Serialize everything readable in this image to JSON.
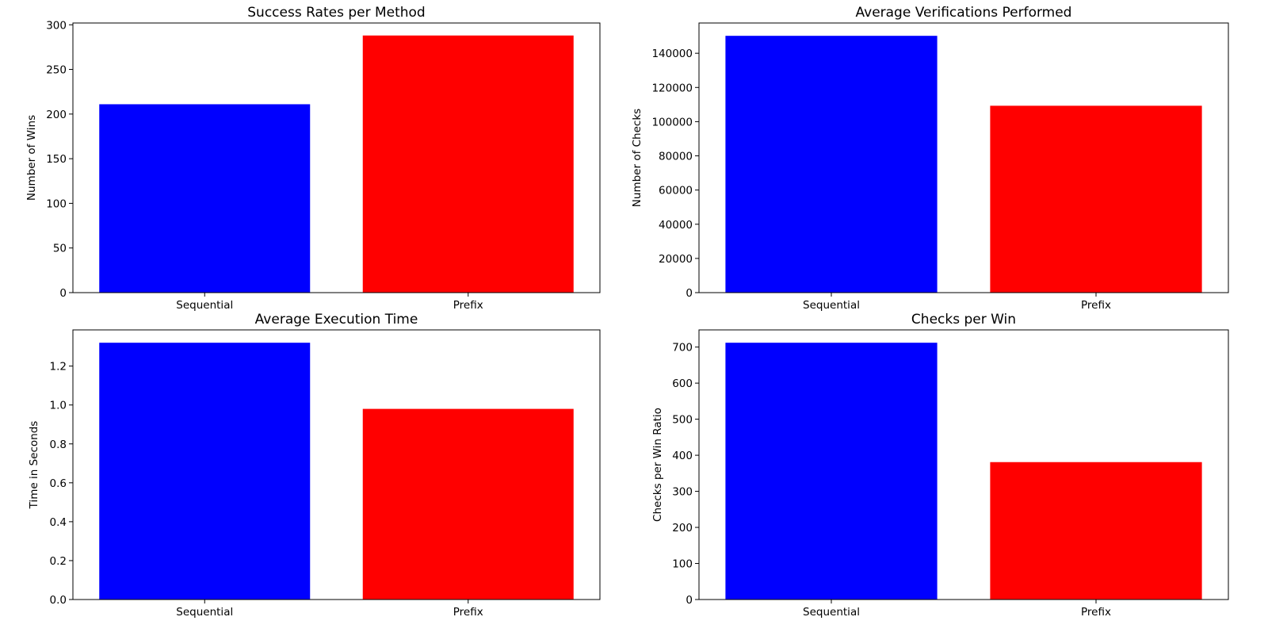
{
  "chart_data": [
    {
      "type": "bar",
      "title": "Success Rates per Method",
      "xlabel": "",
      "ylabel": "Number of Wins",
      "categories": [
        "Sequential",
        "Prefix"
      ],
      "values": [
        211,
        288
      ],
      "colors": [
        "#0000ff",
        "#ff0000"
      ],
      "ylim": [
        0,
        302
      ],
      "yticks": [
        0,
        50,
        100,
        150,
        200,
        250,
        300
      ],
      "ytick_labels": [
        "0",
        "50",
        "100",
        "150",
        "200",
        "250",
        "300"
      ],
      "grid": false
    },
    {
      "type": "bar",
      "title": "Average Verifications Performed",
      "xlabel": "",
      "ylabel": "Number of Checks",
      "categories": [
        "Sequential",
        "Prefix"
      ],
      "values": [
        150200,
        109300
      ],
      "colors": [
        "#0000ff",
        "#ff0000"
      ],
      "ylim": [
        0,
        157700
      ],
      "yticks": [
        0,
        20000,
        40000,
        60000,
        80000,
        100000,
        120000,
        140000
      ],
      "ytick_labels": [
        "0",
        "20000",
        "40000",
        "60000",
        "80000",
        "100000",
        "120000",
        "140000"
      ],
      "grid": false
    },
    {
      "type": "bar",
      "title": "Average Execution Time",
      "xlabel": "",
      "ylabel": "Time in Seconds",
      "categories": [
        "Sequential",
        "Prefix"
      ],
      "values": [
        1.32,
        0.98
      ],
      "colors": [
        "#0000ff",
        "#ff0000"
      ],
      "ylim": [
        0,
        1.386
      ],
      "yticks": [
        0.0,
        0.2,
        0.4,
        0.6,
        0.8,
        1.0,
        1.2
      ],
      "ytick_labels": [
        "0.0",
        "0.2",
        "0.4",
        "0.6",
        "0.8",
        "1.0",
        "1.2"
      ],
      "grid": false
    },
    {
      "type": "bar",
      "title": "Checks per Win",
      "xlabel": "",
      "ylabel": "Checks per Win Ratio",
      "categories": [
        "Sequential",
        "Prefix"
      ],
      "values": [
        712,
        381
      ],
      "colors": [
        "#0000ff",
        "#ff0000"
      ],
      "ylim": [
        0,
        747.6
      ],
      "yticks": [
        0,
        100,
        200,
        300,
        400,
        500,
        600,
        700
      ],
      "ytick_labels": [
        "0",
        "100",
        "200",
        "300",
        "400",
        "500",
        "600",
        "700"
      ],
      "grid": false
    }
  ]
}
